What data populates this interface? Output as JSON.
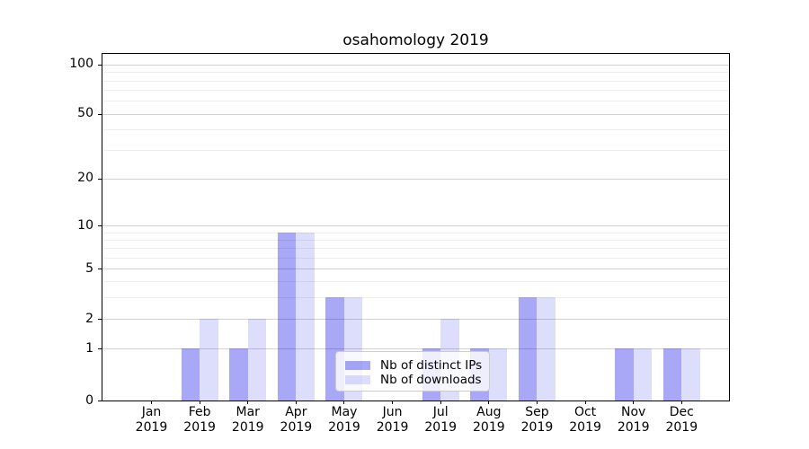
{
  "chart_data": {
    "type": "bar",
    "title": "osahomology 2019",
    "categories": [
      "Jan",
      "Feb",
      "Mar",
      "Apr",
      "May",
      "Jun",
      "Jul",
      "Aug",
      "Sep",
      "Oct",
      "Nov",
      "Dec"
    ],
    "x_year": "2019",
    "series": [
      {
        "name": "Nb of distinct IPs",
        "color": "rgba(0,0,230,0.34)",
        "values": [
          0,
          1,
          1,
          9,
          3,
          0,
          1,
          1,
          3,
          0,
          1,
          1
        ]
      },
      {
        "name": "Nb of downloads",
        "color": "rgba(0,0,230,0.135)",
        "values": [
          0,
          2,
          2,
          9,
          3,
          0,
          2,
          1,
          3,
          0,
          1,
          1
        ]
      }
    ],
    "y_axis": {
      "scale": "log-like with 0 baseline",
      "major_ticks": [
        0,
        1,
        2,
        5,
        10,
        20,
        50,
        100
      ],
      "minor_gridlines": [
        3,
        4,
        6,
        7,
        8,
        9,
        30,
        40,
        60,
        70,
        80,
        90
      ],
      "range": [
        0,
        119
      ]
    },
    "x_axis": {
      "label_format": "month over year, two lines"
    },
    "legend": {
      "entries": [
        "Nb of distinct IPs",
        "Nb of downloads"
      ],
      "position": "inside plot, lower center"
    },
    "colors": {
      "background": "#ffffff",
      "spine": "#000000",
      "major_grid": "#d2d2d2",
      "minor_grid": "#eeeeee",
      "text": "#000000"
    },
    "grid": "on"
  }
}
